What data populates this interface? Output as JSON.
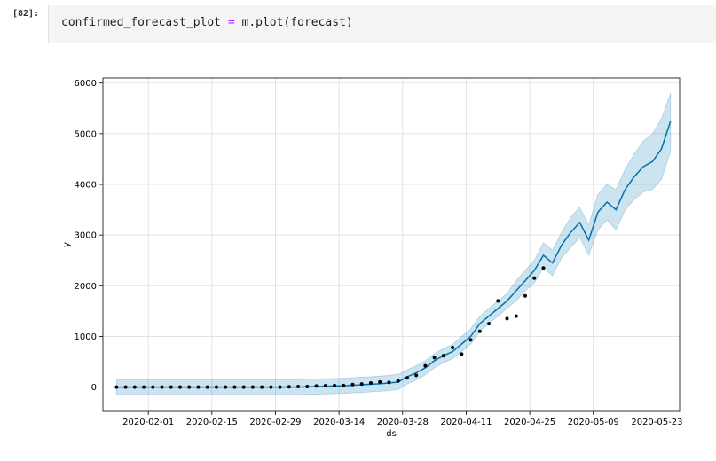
{
  "cell": {
    "prompt": "[82]:",
    "code_var": "confirmed_forecast_plot",
    "code_op": "=",
    "code_call": "m.plot(forecast)"
  },
  "chart_data": {
    "type": "line",
    "xlabel": "ds",
    "ylabel": "y",
    "x_tick_labels": [
      "2020-02-01",
      "2020-02-15",
      "2020-02-29",
      "2020-03-14",
      "2020-03-28",
      "2020-04-11",
      "2020-04-25",
      "2020-05-09",
      "2020-05-23"
    ],
    "y_ticks": [
      0,
      1000,
      2000,
      3000,
      4000,
      5000,
      6000
    ],
    "ylim": [
      -480,
      6100
    ],
    "x_range_days": [
      "2020-01-22",
      "2020-05-28"
    ],
    "grid": true,
    "colors": {
      "forecast_line": "#0072B2",
      "interval_fill": "#0072B2",
      "observed": "#000000"
    },
    "series": [
      {
        "name": "forecast",
        "x": [
          "2020-01-25",
          "2020-01-27",
          "2020-01-29",
          "2020-01-31",
          "2020-02-02",
          "2020-02-04",
          "2020-02-06",
          "2020-02-08",
          "2020-02-10",
          "2020-02-12",
          "2020-02-14",
          "2020-02-16",
          "2020-02-18",
          "2020-02-20",
          "2020-02-22",
          "2020-02-24",
          "2020-02-26",
          "2020-02-28",
          "2020-03-01",
          "2020-03-03",
          "2020-03-05",
          "2020-03-07",
          "2020-03-09",
          "2020-03-11",
          "2020-03-13",
          "2020-03-15",
          "2020-03-17",
          "2020-03-19",
          "2020-03-21",
          "2020-03-23",
          "2020-03-25",
          "2020-03-27",
          "2020-03-29",
          "2020-03-31",
          "2020-04-02",
          "2020-04-04",
          "2020-04-06",
          "2020-04-08",
          "2020-04-10",
          "2020-04-12",
          "2020-04-14",
          "2020-04-16",
          "2020-04-18",
          "2020-04-20",
          "2020-04-22",
          "2020-04-24",
          "2020-04-26",
          "2020-04-28",
          "2020-04-30",
          "2020-05-02",
          "2020-05-04",
          "2020-05-06",
          "2020-05-08",
          "2020-05-10",
          "2020-05-12",
          "2020-05-14",
          "2020-05-16",
          "2020-05-18",
          "2020-05-20",
          "2020-05-22",
          "2020-05-24",
          "2020-05-26"
        ],
        "values": [
          0,
          0,
          0,
          0,
          0,
          0,
          0,
          0,
          0,
          0,
          0,
          0,
          0,
          0,
          0,
          0,
          0,
          0,
          0,
          0,
          0,
          5,
          10,
          15,
          20,
          25,
          35,
          45,
          55,
          65,
          80,
          100,
          200,
          280,
          380,
          520,
          620,
          700,
          850,
          1000,
          1250,
          1400,
          1550,
          1700,
          1900,
          2100,
          2300,
          2600,
          2450,
          2800,
          3050,
          3250,
          2900,
          3450,
          3650,
          3500,
          3900,
          4150,
          4350,
          4450,
          4700,
          5250
        ],
        "lower": [
          -150,
          -150,
          -150,
          -150,
          -150,
          -150,
          -150,
          -150,
          -150,
          -150,
          -150,
          -150,
          -150,
          -150,
          -150,
          -150,
          -150,
          -150,
          -150,
          -150,
          -150,
          -145,
          -140,
          -135,
          -130,
          -125,
          -115,
          -105,
          -95,
          -85,
          -70,
          -50,
          60,
          140,
          240,
          380,
          480,
          560,
          700,
          850,
          1100,
          1250,
          1400,
          1550,
          1700,
          1900,
          2050,
          2350,
          2200,
          2550,
          2750,
          2950,
          2600,
          3100,
          3300,
          3100,
          3500,
          3700,
          3850,
          3900,
          4100,
          4650
        ],
        "upper": [
          150,
          150,
          150,
          150,
          150,
          150,
          150,
          150,
          150,
          150,
          150,
          150,
          150,
          150,
          150,
          150,
          150,
          150,
          150,
          150,
          150,
          155,
          160,
          165,
          170,
          175,
          185,
          195,
          205,
          215,
          230,
          250,
          340,
          420,
          520,
          660,
          760,
          840,
          1000,
          1150,
          1400,
          1550,
          1700,
          1850,
          2100,
          2300,
          2500,
          2850,
          2700,
          3050,
          3350,
          3550,
          3200,
          3800,
          4000,
          3900,
          4300,
          4600,
          4850,
          5000,
          5300,
          5800
        ]
      },
      {
        "name": "observed",
        "x": [
          "2020-01-25",
          "2020-01-27",
          "2020-01-29",
          "2020-01-31",
          "2020-02-02",
          "2020-02-04",
          "2020-02-06",
          "2020-02-08",
          "2020-02-10",
          "2020-02-12",
          "2020-02-14",
          "2020-02-16",
          "2020-02-18",
          "2020-02-20",
          "2020-02-22",
          "2020-02-24",
          "2020-02-26",
          "2020-02-28",
          "2020-03-01",
          "2020-03-03",
          "2020-03-05",
          "2020-03-07",
          "2020-03-09",
          "2020-03-11",
          "2020-03-13",
          "2020-03-15",
          "2020-03-17",
          "2020-03-19",
          "2020-03-21",
          "2020-03-23",
          "2020-03-25",
          "2020-03-27",
          "2020-03-29",
          "2020-03-31",
          "2020-04-02",
          "2020-04-04",
          "2020-04-06",
          "2020-04-08",
          "2020-04-10",
          "2020-04-12",
          "2020-04-14",
          "2020-04-16",
          "2020-04-18",
          "2020-04-20",
          "2020-04-22",
          "2020-04-24",
          "2020-04-26",
          "2020-04-28"
        ],
        "values": [
          0,
          0,
          0,
          0,
          0,
          0,
          0,
          0,
          0,
          0,
          0,
          0,
          0,
          0,
          0,
          0,
          0,
          0,
          0,
          5,
          10,
          10,
          20,
          25,
          30,
          30,
          50,
          60,
          80,
          100,
          90,
          120,
          180,
          230,
          420,
          580,
          620,
          780,
          650,
          930,
          1100,
          1250,
          1700,
          1350,
          1400,
          1800,
          2150,
          2350
        ]
      }
    ]
  }
}
